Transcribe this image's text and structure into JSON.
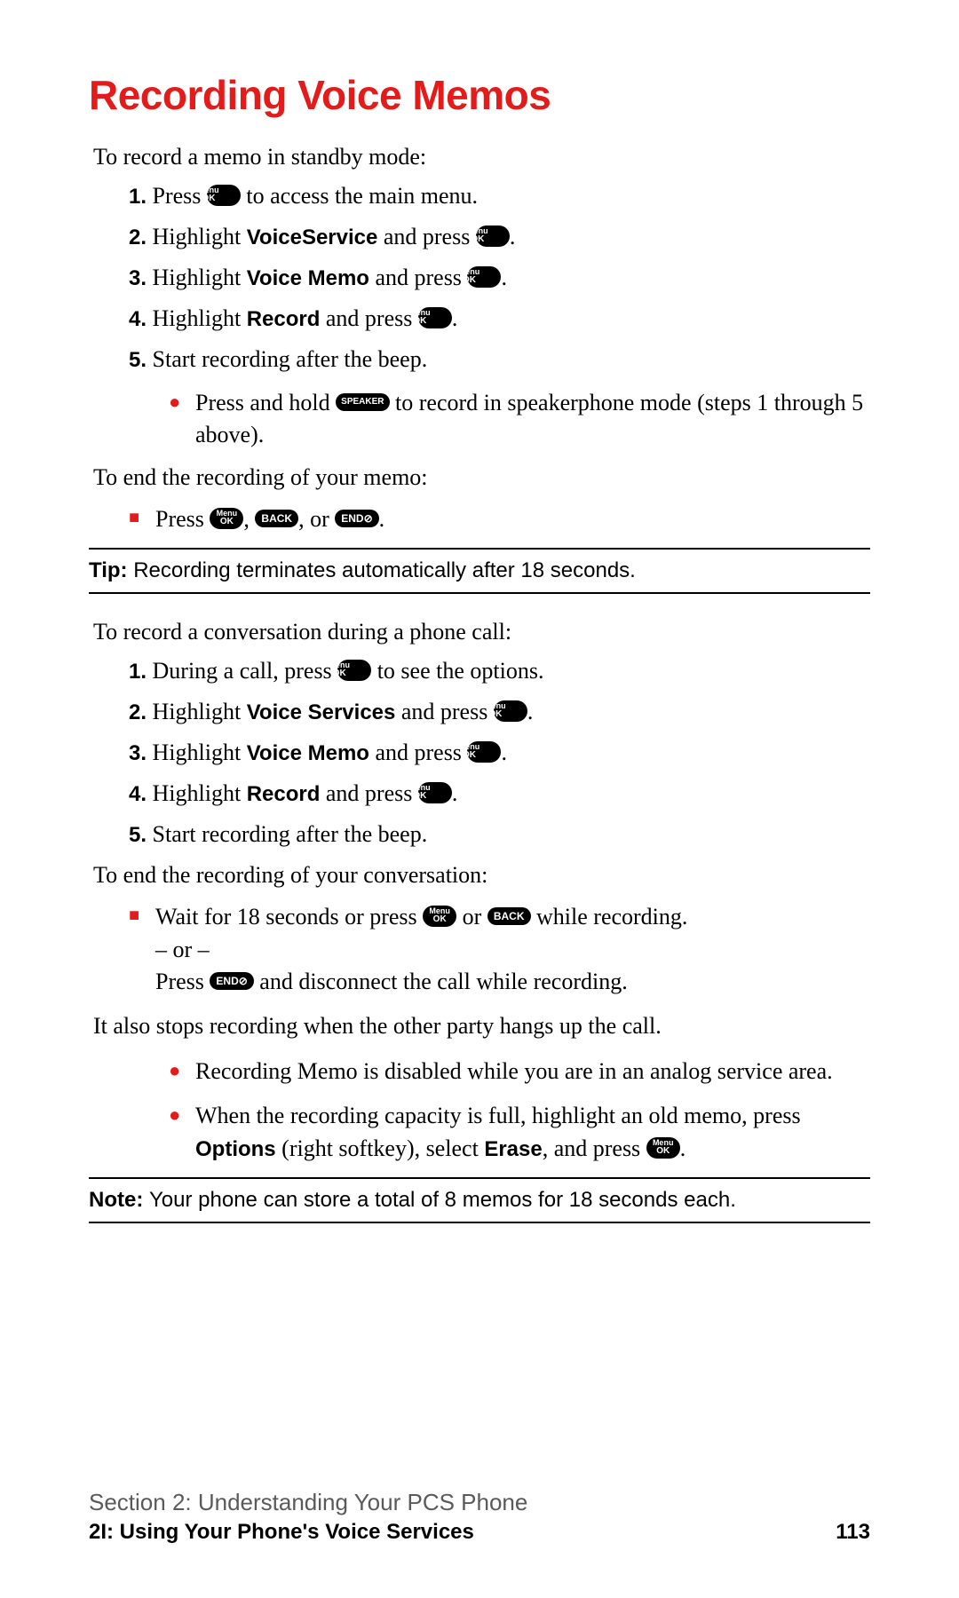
{
  "title": "Recording Voice Memos",
  "intro1": "To record a memo in standby mode:",
  "buttons": {
    "menuok_top": "Menu",
    "menuok_bot": "OK",
    "speaker": "SPEAKER",
    "back": "BACK",
    "end": "END⊘"
  },
  "steps1": [
    {
      "n": "1.",
      "pre": "Press ",
      "btn": "menuok",
      "post": " to access the main menu."
    },
    {
      "n": "2.",
      "pre": "Highlight ",
      "bold": "VoiceService",
      "mid": " and press ",
      "btn": "menuok",
      "post": "."
    },
    {
      "n": "3.",
      "pre": "Highlight ",
      "bold": "Voice Memo",
      "mid": " and press ",
      "btn": "menuok",
      "post": "."
    },
    {
      "n": "4.",
      "pre": "Highlight ",
      "bold": "Record",
      "mid": " and press ",
      "btn": "menuok",
      "post": "."
    },
    {
      "n": "5.",
      "text": "Start recording after the beep."
    }
  ],
  "sub1": {
    "pre": "Press and hold ",
    "btn": "speaker",
    "post": " to record in speakerphone mode (steps 1 through 5 above)."
  },
  "intro2": "To end the recording of your memo:",
  "end1": {
    "pre": "Press ",
    "b1": "menuok",
    "c1": ", ",
    "b2": "back",
    "c2": ", or ",
    "b3": "end",
    "post": "."
  },
  "tip": {
    "label": "Tip: ",
    "text": "Recording terminates automatically after 18 seconds."
  },
  "intro3": "To record a conversation during a phone call:",
  "steps2": [
    {
      "n": "1.",
      "pre": "During a call, press ",
      "btn": "menuok",
      "post": " to see the options."
    },
    {
      "n": "2.",
      "pre": "Highlight ",
      "bold": "Voice Services",
      "mid": " and press ",
      "btn": "menuok",
      "post": "."
    },
    {
      "n": "3.",
      "pre": "Highlight ",
      "bold": "Voice Memo",
      "mid": " and press ",
      "btn": "menuok",
      "post": "."
    },
    {
      "n": "4.",
      "pre": "Highlight ",
      "bold": "Record",
      "mid": " and press ",
      "btn": "menuok",
      "post": "."
    },
    {
      "n": "5.",
      "text": "Start recording after the beep."
    }
  ],
  "intro4": "To end the recording of your conversation:",
  "end2": {
    "l1a": "Wait for 18 seconds or press ",
    "b1": "menuok",
    "l1b": " or ",
    "b2": "back",
    "l1c": " while recording.",
    "or": "– or –",
    "l2a": "Press ",
    "b3": "end",
    "l2b": " and disconnect the call while recording."
  },
  "para1": "It also stops recording when the other party hangs up the call.",
  "notes": [
    {
      "text": "Recording Memo is disabled while you are in an analog service area."
    },
    {
      "pre": "When the recording capacity is full, highlight an old memo, press ",
      "bold1": "Options",
      "mid": " (right softkey), select ",
      "bold2": "Erase",
      "mid2": ", and press ",
      "btn": "menuok",
      "post": "."
    }
  ],
  "note": {
    "label": "Note: ",
    "text": "Your phone can store a total of 8 memos for 18 seconds each."
  },
  "footer": {
    "section": "Section 2: Understanding Your PCS Phone",
    "sub": "2I: Using Your Phone's Voice Services",
    "page": "113"
  },
  "colors": {
    "accent": "#e31b1b",
    "text": "#000000",
    "bg": "#ffffff",
    "footer_gray": "#5a5a5a"
  }
}
